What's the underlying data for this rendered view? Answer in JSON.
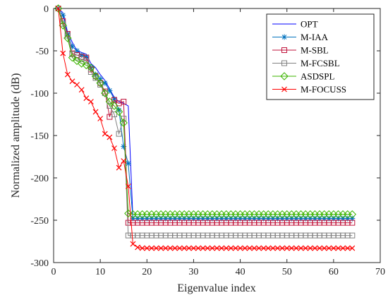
{
  "chart_data": {
    "type": "line",
    "xlabel": "Eigenvalue index",
    "ylabel": "Normalized amplitude (dB)",
    "xlim": [
      0,
      70
    ],
    "ylim": [
      -300,
      0
    ],
    "xticks": [
      0,
      10,
      20,
      30,
      40,
      50,
      60,
      70
    ],
    "yticks": [
      0,
      -50,
      -100,
      -150,
      -200,
      -250,
      -300
    ],
    "grid": false,
    "legend_position": "top-right",
    "series": [
      {
        "name": "OPT",
        "color": "#0000ff",
        "marker": "none",
        "x": [
          1,
          2,
          3,
          4,
          5,
          6,
          7,
          8,
          9,
          10,
          11,
          12,
          13,
          14,
          15,
          16,
          17,
          18,
          19,
          20,
          22,
          24,
          26,
          28,
          30,
          32,
          34,
          36,
          38,
          40,
          42,
          44,
          46,
          48,
          50,
          52,
          54,
          56,
          58,
          60,
          62,
          64
        ],
        "y": [
          0,
          -5,
          -28,
          -40,
          -50,
          -52,
          -54,
          -65,
          -70,
          -78,
          -85,
          -95,
          -105,
          -110,
          -112,
          -115,
          -248,
          -248,
          -248,
          -248,
          -248,
          -248,
          -248,
          -248,
          -248,
          -248,
          -248,
          -248,
          -248,
          -248,
          -248,
          -248,
          -248,
          -248,
          -248,
          -248,
          -248,
          -248,
          -248,
          -248,
          -248,
          -248
        ]
      },
      {
        "name": "M-IAA",
        "color": "#0072bd",
        "marker": "asterisk",
        "x": [
          1,
          2,
          3,
          4,
          5,
          6,
          7,
          8,
          9,
          10,
          11,
          12,
          13,
          14,
          15,
          16,
          17,
          18,
          19,
          20,
          21,
          22,
          23,
          24,
          25,
          26,
          27,
          28,
          29,
          30,
          31,
          32,
          33,
          34,
          35,
          36,
          37,
          38,
          39,
          40,
          41,
          42,
          43,
          44,
          45,
          46,
          47,
          48,
          49,
          50,
          51,
          52,
          53,
          54,
          55,
          56,
          57,
          58,
          59,
          60,
          61,
          62,
          63,
          64
        ],
        "y": [
          0,
          -8,
          -30,
          -45,
          -50,
          -55,
          -57,
          -70,
          -78,
          -83,
          -88,
          -97,
          -107,
          -120,
          -163,
          -183,
          -248,
          -248,
          -248,
          -248,
          -248,
          -248,
          -248,
          -248,
          -248,
          -248,
          -248,
          -248,
          -248,
          -248,
          -248,
          -248,
          -248,
          -248,
          -248,
          -248,
          -248,
          -248,
          -248,
          -248,
          -248,
          -248,
          -248,
          -248,
          -248,
          -248,
          -248,
          -248,
          -248,
          -248,
          -248,
          -248,
          -248,
          -248,
          -248,
          -248,
          -248,
          -248,
          -248,
          -248,
          -248,
          -248,
          -248,
          -248
        ]
      },
      {
        "name": "M-SBL",
        "color": "#c0143c",
        "marker": "square",
        "x": [
          1,
          2,
          3,
          4,
          5,
          6,
          7,
          8,
          9,
          10,
          11,
          12,
          13,
          14,
          15,
          16,
          17,
          18,
          19,
          20,
          21,
          22,
          23,
          24,
          25,
          26,
          27,
          28,
          29,
          30,
          31,
          32,
          33,
          34,
          35,
          36,
          37,
          38,
          39,
          40,
          41,
          42,
          43,
          44,
          45,
          46,
          47,
          48,
          49,
          50,
          51,
          52,
          53,
          54,
          55,
          56,
          57,
          58,
          59,
          60,
          61,
          62,
          63,
          64
        ],
        "y": [
          0,
          -15,
          -30,
          -53,
          -55,
          -57,
          -58,
          -72,
          -80,
          -88,
          -98,
          -128,
          -108,
          -112,
          -110,
          -253,
          -253,
          -253,
          -253,
          -253,
          -253,
          -253,
          -253,
          -253,
          -253,
          -253,
          -253,
          -253,
          -253,
          -253,
          -253,
          -253,
          -253,
          -253,
          -253,
          -253,
          -253,
          -253,
          -253,
          -253,
          -253,
          -253,
          -253,
          -253,
          -253,
          -253,
          -253,
          -253,
          -253,
          -253,
          -253,
          -253,
          -253,
          -253,
          -253,
          -253,
          -253,
          -253,
          -253,
          -253,
          -253,
          -253,
          -253,
          -253
        ]
      },
      {
        "name": "M-FCSBL",
        "color": "#808080",
        "marker": "square",
        "x": [
          1,
          2,
          3,
          4,
          5,
          6,
          7,
          8,
          9,
          10,
          11,
          12,
          13,
          14,
          15,
          16,
          17,
          18,
          19,
          20,
          21,
          22,
          23,
          24,
          25,
          26,
          27,
          28,
          29,
          30,
          31,
          32,
          33,
          34,
          35,
          36,
          37,
          38,
          39,
          40,
          41,
          42,
          43,
          44,
          45,
          46,
          47,
          48,
          49,
          50,
          51,
          52,
          53,
          54,
          55,
          56,
          57,
          58,
          59,
          60,
          61,
          62,
          63,
          64
        ],
        "y": [
          0,
          -18,
          -32,
          -54,
          -58,
          -60,
          -62,
          -75,
          -82,
          -90,
          -100,
          -115,
          -125,
          -148,
          -130,
          -268,
          -268,
          -268,
          -268,
          -268,
          -268,
          -268,
          -268,
          -268,
          -268,
          -268,
          -268,
          -268,
          -268,
          -268,
          -268,
          -268,
          -268,
          -268,
          -268,
          -268,
          -268,
          -268,
          -268,
          -268,
          -268,
          -268,
          -268,
          -268,
          -268,
          -268,
          -268,
          -268,
          -268,
          -268,
          -268,
          -268,
          -268,
          -268,
          -268,
          -268,
          -268,
          -268,
          -268,
          -268,
          -268,
          -268,
          -268,
          -268
        ]
      },
      {
        "name": "ASDSPL",
        "color": "#3cb400",
        "marker": "diamond",
        "x": [
          1,
          2,
          3,
          4,
          5,
          6,
          7,
          8,
          9,
          10,
          11,
          12,
          13,
          14,
          15,
          16,
          17,
          18,
          19,
          20,
          21,
          22,
          23,
          24,
          25,
          26,
          27,
          28,
          29,
          30,
          31,
          32,
          33,
          34,
          35,
          36,
          37,
          38,
          39,
          40,
          41,
          42,
          43,
          44,
          45,
          46,
          47,
          48,
          49,
          50,
          51,
          52,
          53,
          54,
          55,
          56,
          57,
          58,
          59,
          60,
          61,
          62,
          63,
          64
        ],
        "y": [
          0,
          -20,
          -35,
          -58,
          -62,
          -65,
          -67,
          -70,
          -80,
          -88,
          -100,
          -110,
          -115,
          -122,
          -135,
          -242,
          -243,
          -243,
          -243,
          -243,
          -243,
          -243,
          -243,
          -243,
          -243,
          -243,
          -243,
          -243,
          -243,
          -243,
          -243,
          -243,
          -243,
          -243,
          -243,
          -243,
          -243,
          -243,
          -243,
          -243,
          -243,
          -243,
          -243,
          -243,
          -243,
          -243,
          -243,
          -243,
          -243,
          -243,
          -243,
          -243,
          -243,
          -243,
          -243,
          -243,
          -243,
          -243,
          -243,
          -243,
          -243,
          -243,
          -243,
          -243
        ]
      },
      {
        "name": "M-FOCUSS",
        "color": "#ff0000",
        "marker": "x",
        "x": [
          1,
          2,
          3,
          4,
          5,
          6,
          7,
          8,
          9,
          10,
          11,
          12,
          13,
          14,
          15,
          16,
          17,
          18,
          19,
          20,
          21,
          22,
          23,
          24,
          25,
          26,
          27,
          28,
          29,
          30,
          31,
          32,
          33,
          34,
          35,
          36,
          37,
          38,
          39,
          40,
          41,
          42,
          43,
          44,
          45,
          46,
          47,
          48,
          49,
          50,
          51,
          52,
          53,
          54,
          55,
          56,
          57,
          58,
          59,
          60,
          61,
          62,
          63,
          64
        ],
        "y": [
          0,
          -53,
          -78,
          -86,
          -90,
          -96,
          -106,
          -110,
          -122,
          -130,
          -148,
          -152,
          -165,
          -188,
          -180,
          -210,
          -278,
          -282,
          -283,
          -283,
          -283,
          -283,
          -283,
          -283,
          -283,
          -283,
          -283,
          -283,
          -283,
          -283,
          -283,
          -283,
          -283,
          -283,
          -283,
          -283,
          -283,
          -283,
          -283,
          -283,
          -283,
          -283,
          -283,
          -283,
          -283,
          -283,
          -283,
          -283,
          -283,
          -283,
          -283,
          -283,
          -283,
          -283,
          -283,
          -283,
          -283,
          -283,
          -283,
          -283,
          -283,
          -283,
          -283,
          -283
        ]
      }
    ]
  }
}
